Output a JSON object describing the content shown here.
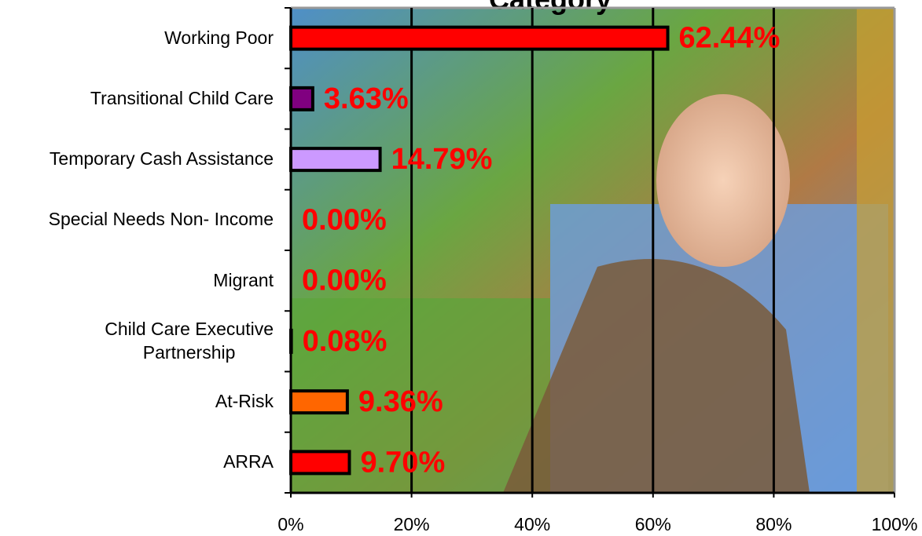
{
  "chart_data": {
    "type": "hbar",
    "title": "Category",
    "categories": [
      "Working Poor",
      "Transitional Child Care",
      "Temporary Cash Assistance",
      "Special Needs Non- Income",
      "Migrant",
      "Child Care Executive\nPartnership",
      "At-Risk",
      "ARRA"
    ],
    "values": [
      62.44,
      3.63,
      14.79,
      0,
      0,
      0.08,
      9.36,
      9.7
    ],
    "value_labels": [
      "62.44%",
      "3.63%",
      "14.79%",
      "0.00%",
      "0.00%",
      "0.08%",
      "9.36%",
      "9.70%"
    ],
    "colors": [
      "#ff0000",
      "#800080",
      "#cc99ff",
      "#000000",
      "#000000",
      "#000000",
      "#ff6600",
      "#ff0000"
    ],
    "xlim": [
      0,
      100
    ],
    "xticks": [
      {
        "value": 0,
        "label": "0%"
      },
      {
        "value": 20,
        "label": "20%"
      },
      {
        "value": 40,
        "label": "40%"
      },
      {
        "value": 60,
        "label": "60%"
      },
      {
        "value": 80,
        "label": "80%"
      },
      {
        "value": 100,
        "label": "100%"
      }
    ],
    "grid": true
  }
}
